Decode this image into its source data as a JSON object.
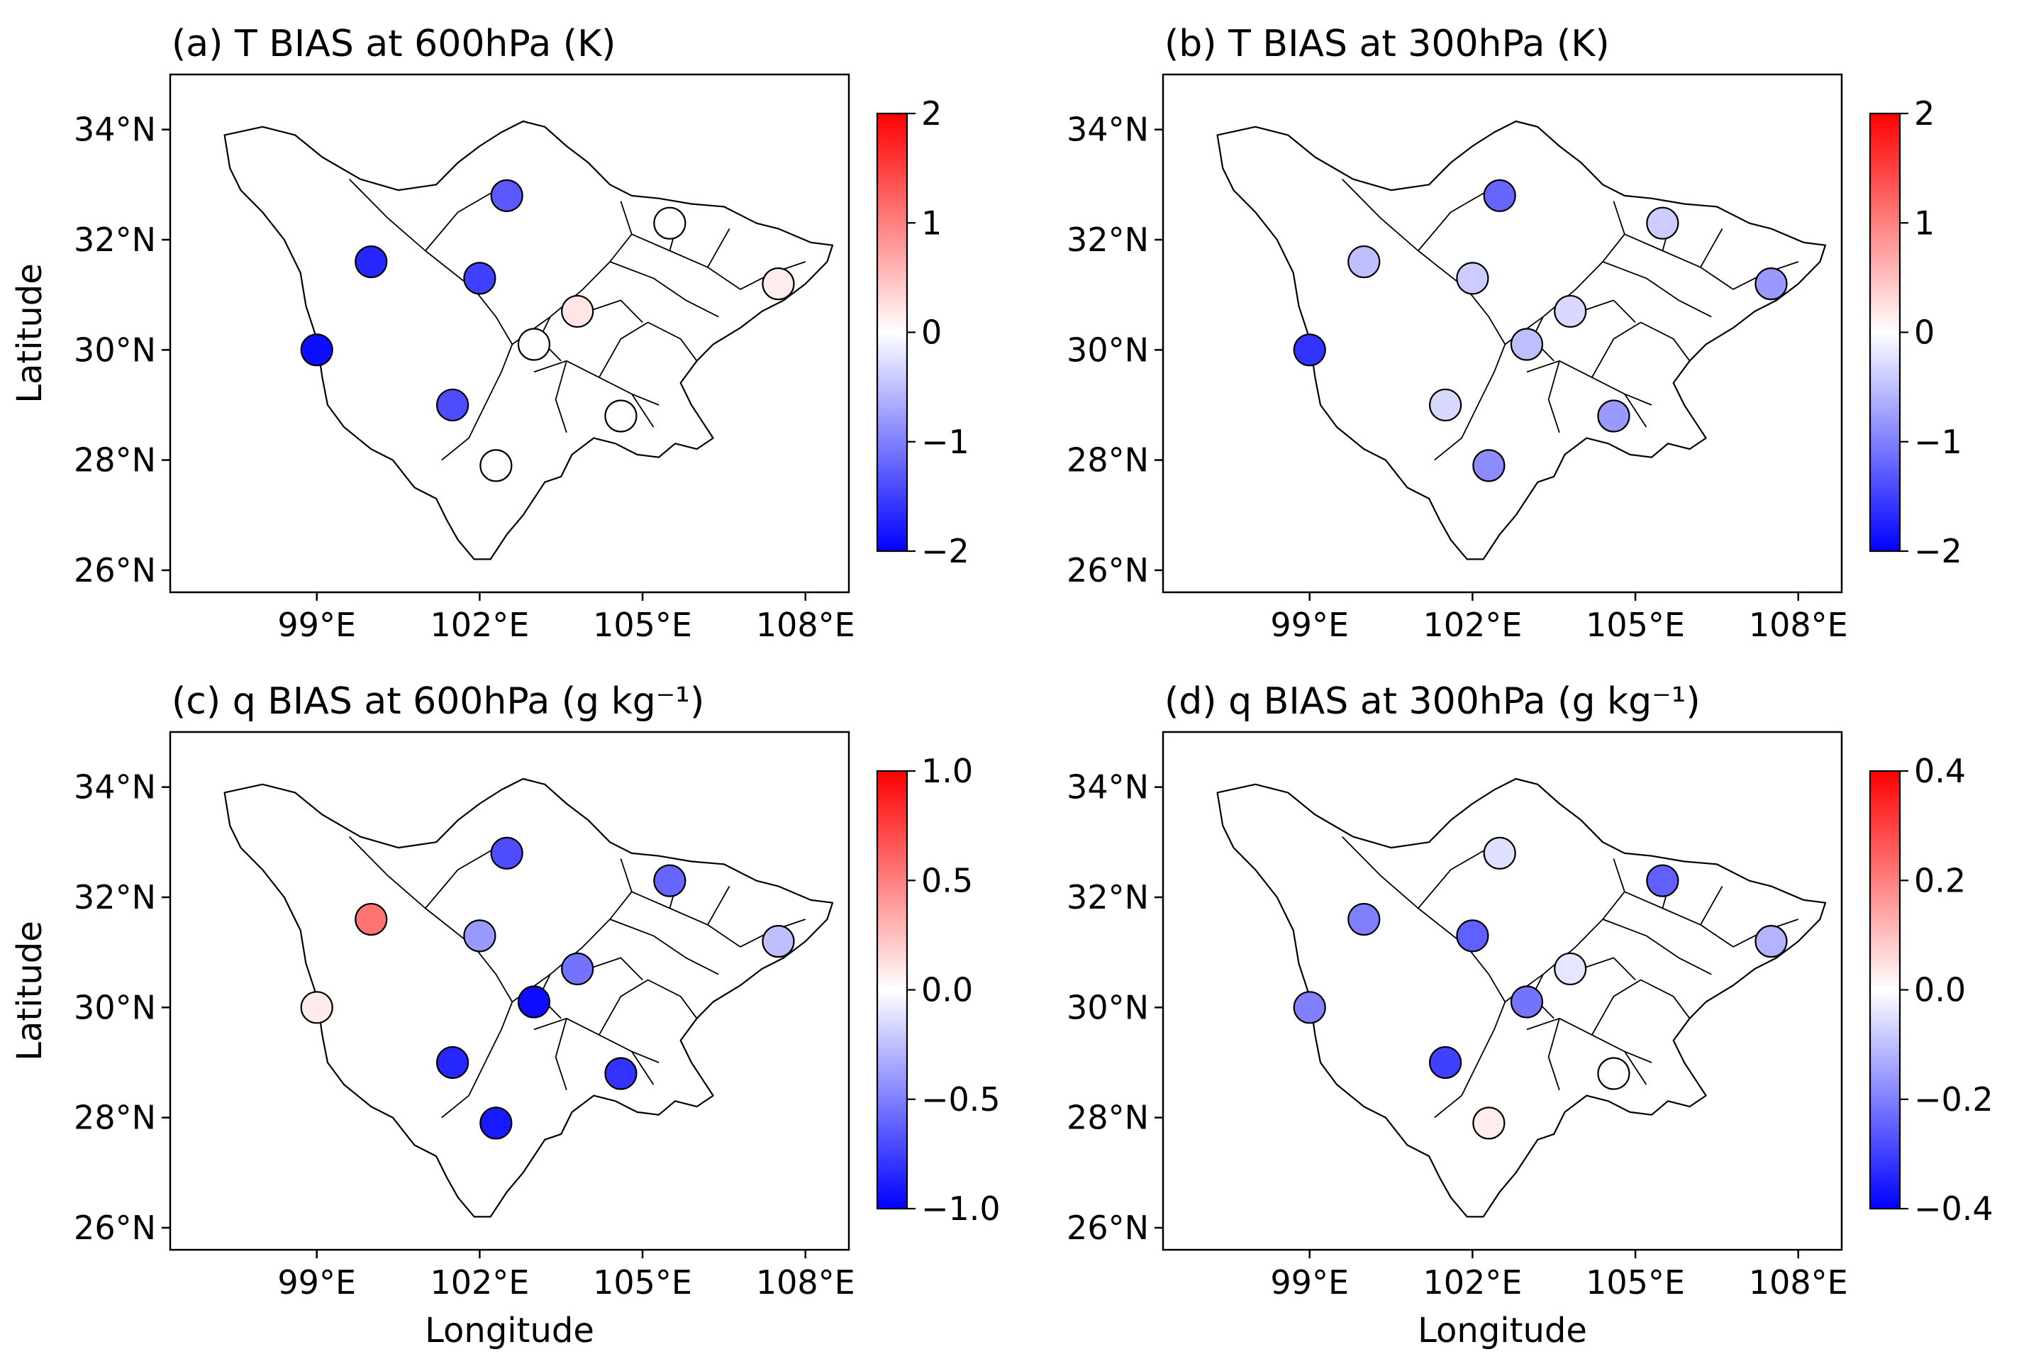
{
  "figure": {
    "colormap": {
      "low": "#0000ff",
      "mid": "#ffffff",
      "high": "#ff0000"
    },
    "x_ticks": [
      "99°E",
      "102°E",
      "105°E",
      "108°E"
    ],
    "y_ticks": [
      "34°N",
      "32°N",
      "30°N",
      "28°N",
      "26°N"
    ],
    "xlabel": "Longitude",
    "ylabel": "Latitude"
  },
  "chart_data": [
    {
      "type": "scatter",
      "title": "(a) T BIAS at 600hPa (K)",
      "xlabel": "",
      "ylabel": "Latitude",
      "xlim": [
        96.3,
        108.8
      ],
      "ylim": [
        25.6,
        35.0
      ],
      "color_range": [
        -2,
        2
      ],
      "colorbar_ticks": [
        "2",
        "1",
        "0",
        "−1",
        "−2"
      ],
      "points": [
        {
          "lon": 102.5,
          "lat": 32.8,
          "value": -1.3
        },
        {
          "lon": 100.0,
          "lat": 31.6,
          "value": -1.7
        },
        {
          "lon": 102.0,
          "lat": 31.3,
          "value": -1.5
        },
        {
          "lon": 105.5,
          "lat": 32.3,
          "value": 0.0
        },
        {
          "lon": 107.5,
          "lat": 31.2,
          "value": 0.15
        },
        {
          "lon": 99.0,
          "lat": 30.0,
          "value": -1.9
        },
        {
          "lon": 103.8,
          "lat": 30.7,
          "value": 0.2
        },
        {
          "lon": 103.0,
          "lat": 30.1,
          "value": 0.0
        },
        {
          "lon": 101.5,
          "lat": 29.0,
          "value": -1.4
        },
        {
          "lon": 104.6,
          "lat": 28.8,
          "value": 0.0
        },
        {
          "lon": 102.3,
          "lat": 27.9,
          "value": 0.0
        }
      ]
    },
    {
      "type": "scatter",
      "title": "(b) T BIAS at 300hPa (K)",
      "xlabel": "",
      "ylabel": "",
      "xlim": [
        96.3,
        108.8
      ],
      "ylim": [
        25.6,
        35.0
      ],
      "color_range": [
        -2,
        2
      ],
      "colorbar_ticks": [
        "2",
        "1",
        "0",
        "−1",
        "−2"
      ],
      "points": [
        {
          "lon": 102.5,
          "lat": 32.8,
          "value": -1.2
        },
        {
          "lon": 100.0,
          "lat": 31.6,
          "value": -0.5
        },
        {
          "lon": 102.0,
          "lat": 31.3,
          "value": -0.4
        },
        {
          "lon": 105.5,
          "lat": 32.3,
          "value": -0.4
        },
        {
          "lon": 107.5,
          "lat": 31.2,
          "value": -0.8
        },
        {
          "lon": 99.0,
          "lat": 30.0,
          "value": -1.6
        },
        {
          "lon": 103.8,
          "lat": 30.7,
          "value": -0.3
        },
        {
          "lon": 103.0,
          "lat": 30.1,
          "value": -0.5
        },
        {
          "lon": 101.5,
          "lat": 29.0,
          "value": -0.3
        },
        {
          "lon": 104.6,
          "lat": 28.8,
          "value": -0.8
        },
        {
          "lon": 102.3,
          "lat": 27.9,
          "value": -0.9
        }
      ]
    },
    {
      "type": "scatter",
      "title": "(c) q BIAS at 600hPa (g kg⁻¹)",
      "xlabel": "Longitude",
      "ylabel": "Latitude",
      "xlim": [
        96.3,
        108.8
      ],
      "ylim": [
        25.6,
        35.0
      ],
      "color_range": [
        -1.0,
        1.0
      ],
      "colorbar_ticks": [
        "1.0",
        "0.5",
        "0.0",
        "−0.5",
        "−1.0"
      ],
      "points": [
        {
          "lon": 102.5,
          "lat": 32.8,
          "value": -0.7
        },
        {
          "lon": 100.0,
          "lat": 31.6,
          "value": 0.55
        },
        {
          "lon": 102.0,
          "lat": 31.3,
          "value": -0.4
        },
        {
          "lon": 105.5,
          "lat": 32.3,
          "value": -0.6
        },
        {
          "lon": 107.5,
          "lat": 31.2,
          "value": -0.25
        },
        {
          "lon": 99.0,
          "lat": 30.0,
          "value": 0.08
        },
        {
          "lon": 103.8,
          "lat": 30.7,
          "value": -0.55
        },
        {
          "lon": 103.0,
          "lat": 30.1,
          "value": -0.95
        },
        {
          "lon": 101.5,
          "lat": 29.0,
          "value": -0.85
        },
        {
          "lon": 104.6,
          "lat": 28.8,
          "value": -0.8
        },
        {
          "lon": 102.3,
          "lat": 27.9,
          "value": -0.9
        }
      ]
    },
    {
      "type": "scatter",
      "title": "(d) q BIAS at 300hPa (g kg⁻¹)",
      "xlabel": "Longitude",
      "ylabel": "",
      "xlim": [
        96.3,
        108.8
      ],
      "ylim": [
        25.6,
        35.0
      ],
      "color_range": [
        -0.4,
        0.4
      ],
      "colorbar_ticks": [
        "0.4",
        "0.2",
        "0.0",
        "−0.2",
        "−0.4"
      ],
      "points": [
        {
          "lon": 102.5,
          "lat": 32.8,
          "value": -0.05
        },
        {
          "lon": 100.0,
          "lat": 31.6,
          "value": -0.2
        },
        {
          "lon": 102.0,
          "lat": 31.3,
          "value": -0.25
        },
        {
          "lon": 105.5,
          "lat": 32.3,
          "value": -0.25
        },
        {
          "lon": 107.5,
          "lat": 31.2,
          "value": -0.12
        },
        {
          "lon": 99.0,
          "lat": 30.0,
          "value": -0.2
        },
        {
          "lon": 103.8,
          "lat": 30.7,
          "value": -0.04
        },
        {
          "lon": 103.0,
          "lat": 30.1,
          "value": -0.22
        },
        {
          "lon": 101.5,
          "lat": 29.0,
          "value": -0.3
        },
        {
          "lon": 104.6,
          "lat": 28.8,
          "value": 0.0
        },
        {
          "lon": 102.3,
          "lat": 27.9,
          "value": 0.03
        }
      ]
    }
  ]
}
